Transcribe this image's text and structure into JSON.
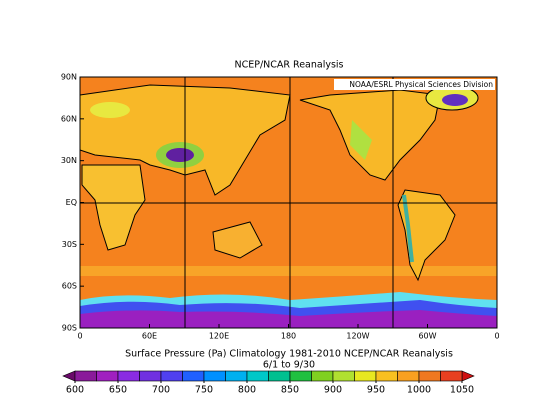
{
  "title": "NCEP/NCAR Reanalysis",
  "credit": "NOAA/ESRL Physical Sciences Division",
  "latitude_labels": [
    "90N",
    "60N",
    "30N",
    "EQ",
    "30S",
    "60S",
    "90S"
  ],
  "longitude_labels": [
    "0",
    "60E",
    "120E",
    "180",
    "120W",
    "60W",
    "0"
  ],
  "caption": [
    "Surface Pressure (Pa) Climatology 1981-2010 NCEP/NCAR Reanalysis",
    "6/1  to 9/30"
  ],
  "colorbar": {
    "levels": [
      600,
      650,
      700,
      750,
      800,
      850,
      900,
      950,
      1000,
      1050
    ],
    "colors": [
      "#6a0a6a",
      "#8a1a9a",
      "#a020c0",
      "#8a2be2",
      "#7030e0",
      "#5040f0",
      "#2060ff",
      "#0090ff",
      "#00b0f0",
      "#00c8c8",
      "#00c090",
      "#20c040",
      "#80d020",
      "#b0e030",
      "#e8e820",
      "#f8c020",
      "#f8a020",
      "#f07820",
      "#e84020",
      "#d01010"
    ]
  }
}
